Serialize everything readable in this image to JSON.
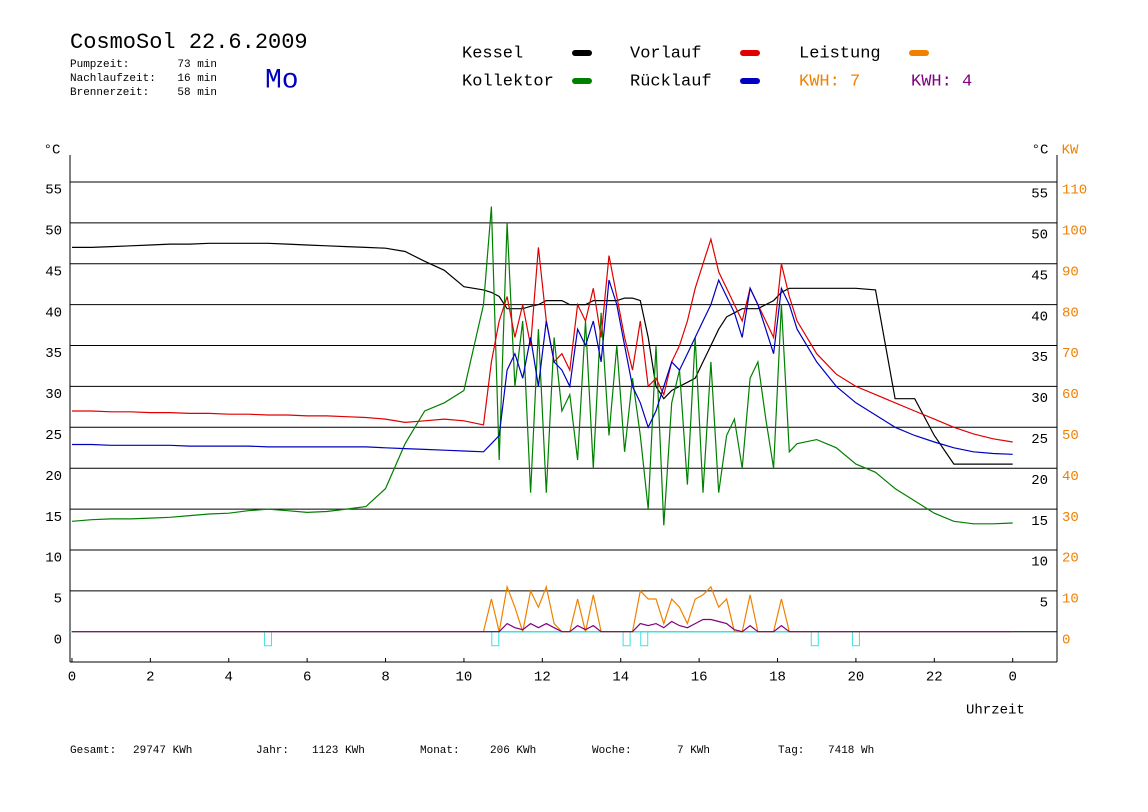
{
  "header": {
    "title": "CosmoSol 22.6.2009",
    "day": "Mo",
    "stats": [
      {
        "label": "Pumpzeit:",
        "value": "73 min"
      },
      {
        "label": "Nachlaufzeit:",
        "value": "16 min"
      },
      {
        "label": "Brennerzeit:",
        "value": "58 min"
      }
    ]
  },
  "footer": [
    {
      "label": "Gesamt:",
      "value": "29747 KWh"
    },
    {
      "label": "Jahr:",
      "value": "1123 KWh"
    },
    {
      "label": "Monat:",
      "value": "206 KWh"
    },
    {
      "label": "Woche:",
      "value": "7 KWh"
    },
    {
      "label": "Tag:",
      "value": "7418 Wh"
    }
  ],
  "chart_data": {
    "type": "line",
    "y_label": "°C",
    "y_right_label": "°C",
    "y2_label": "KW",
    "x_label": "Uhrzeit",
    "annotations": [
      {
        "text": "KWH: 7",
        "color": "#f08000"
      },
      {
        "text": "KWH: 4",
        "color": "#800080"
      }
    ],
    "xlim": [
      -0.05,
      25.13
    ],
    "ylim": [
      -3.7,
      58.3
    ],
    "y2lim": [
      -7.4,
      116.6
    ],
    "xticks": [
      0,
      2,
      4,
      6,
      8,
      10,
      12,
      14,
      16,
      18,
      20,
      22,
      {
        "value": 24,
        "label": "0"
      }
    ],
    "yticks": [
      0,
      5,
      10,
      15,
      20,
      25,
      30,
      35,
      40,
      45,
      50,
      55
    ],
    "yticks_right": [
      5,
      10,
      15,
      20,
      25,
      30,
      35,
      40,
      45,
      50,
      55
    ],
    "y2ticks": [
      0,
      10,
      20,
      30,
      40,
      50,
      60,
      70,
      80,
      90,
      100,
      110
    ],
    "grid": true,
    "status_color": "#40e0e0",
    "status_markers": [
      5,
      10.8,
      14.15,
      14.6,
      18.95,
      20
    ],
    "x": [
      0,
      0.5,
      1,
      1.5,
      2,
      2.5,
      3,
      3.5,
      4,
      4.5,
      5,
      5.5,
      6,
      6.5,
      7,
      7.5,
      8,
      8.5,
      9,
      9.5,
      10,
      10.5,
      10.7,
      10.9,
      11.1,
      11.3,
      11.5,
      11.7,
      11.9,
      12.1,
      12.3,
      12.5,
      12.7,
      12.9,
      13.1,
      13.3,
      13.5,
      13.7,
      13.9,
      14.1,
      14.3,
      14.5,
      14.7,
      14.9,
      15.1,
      15.3,
      15.5,
      15.7,
      15.9,
      16.1,
      16.3,
      16.5,
      16.7,
      16.9,
      17.1,
      17.3,
      17.5,
      17.7,
      17.9,
      18.1,
      18.3,
      18.5,
      19,
      19.5,
      20,
      20.5,
      21,
      21.5,
      22,
      22.5,
      23,
      23.5,
      24
    ],
    "series": [
      {
        "name": "Kessel",
        "color": "#000000",
        "values": [
          47,
          47,
          47.1,
          47.2,
          47.3,
          47.4,
          47.4,
          47.5,
          47.5,
          47.5,
          47.5,
          47.4,
          47.3,
          47.2,
          47.1,
          47,
          46.9,
          46.5,
          45.3,
          44.2,
          42.2,
          41.8,
          41.5,
          41,
          39.5,
          39.5,
          39.5,
          39.8,
          40,
          40.5,
          40.5,
          40.5,
          40,
          40,
          40,
          40.5,
          40.5,
          40.5,
          40.5,
          40.8,
          40.8,
          40.5,
          36,
          30,
          28.5,
          29.5,
          30,
          30.5,
          31,
          33,
          35,
          37,
          38.5,
          39,
          39.5,
          39.5,
          39.5,
          40,
          40.5,
          41.5,
          42,
          42,
          42,
          42,
          42,
          41.8,
          28.5,
          28.5,
          24,
          20.5,
          20.5,
          20.5,
          20.5
        ]
      },
      {
        "name": "Kollektor",
        "color": "#008000",
        "values": [
          13.5,
          13.7,
          13.8,
          13.8,
          13.9,
          14,
          14.2,
          14.4,
          14.5,
          14.8,
          15,
          14.8,
          14.6,
          14.7,
          15,
          15.3,
          17.5,
          23,
          27,
          28,
          29.5,
          40,
          52,
          21,
          50,
          30,
          38,
          17,
          37,
          17,
          36,
          27,
          29,
          21,
          38,
          20,
          39,
          24,
          35,
          22,
          31,
          24,
          15,
          35,
          13,
          28,
          32,
          18,
          36,
          17,
          33,
          17,
          24,
          26,
          20,
          31,
          33,
          26,
          20,
          40,
          22,
          23,
          23.5,
          22.5,
          20.5,
          19.5,
          17.5,
          16,
          14.5,
          13.5,
          13.2,
          13.2,
          13.3
        ]
      },
      {
        "name": "Vorlauf",
        "color": "#e00000",
        "values": [
          27,
          27,
          26.9,
          26.9,
          26.8,
          26.8,
          26.7,
          26.7,
          26.6,
          26.6,
          26.5,
          26.5,
          26.4,
          26.4,
          26.3,
          26.2,
          26,
          25.6,
          25.8,
          26,
          25.8,
          25.3,
          33,
          38,
          41,
          36,
          40,
          35,
          47,
          38,
          33,
          34,
          32,
          40,
          38,
          42,
          36,
          46,
          41,
          36,
          32,
          38,
          30,
          31,
          29,
          33,
          35,
          38,
          42,
          45,
          48,
          44,
          42,
          40,
          38,
          42,
          40,
          38,
          36,
          45,
          41,
          38,
          34,
          31.5,
          30,
          29,
          28,
          27,
          26,
          25,
          24.2,
          23.6,
          23.2
        ]
      },
      {
        "name": "Rücklauf",
        "color": "#0000c0",
        "values": [
          22.9,
          22.9,
          22.8,
          22.8,
          22.8,
          22.8,
          22.7,
          22.7,
          22.7,
          22.7,
          22.6,
          22.6,
          22.6,
          22.6,
          22.6,
          22.6,
          22.5,
          22.4,
          22.3,
          22.2,
          22.1,
          22,
          23,
          24,
          32,
          34,
          31,
          36,
          30,
          38,
          33,
          32,
          30,
          37,
          35,
          38,
          33,
          43,
          40,
          35,
          30,
          28,
          25,
          27,
          30,
          33,
          32,
          34,
          36,
          38,
          40,
          43,
          41,
          39,
          36,
          42,
          40,
          37,
          34,
          42,
          40,
          37,
          33,
          30,
          28,
          26.5,
          25,
          24,
          23.2,
          22.5,
          22,
          21.8,
          21.7
        ]
      },
      {
        "name": "Leistung",
        "color": "#f08000",
        "axis": "y2",
        "values": [
          0,
          0,
          0,
          0,
          0,
          0,
          0,
          0,
          0,
          0,
          0,
          0,
          0,
          0,
          0,
          0,
          0,
          0,
          0,
          0,
          0,
          0,
          8,
          0,
          11,
          6,
          0,
          10,
          6,
          11,
          2,
          0,
          0,
          8,
          0,
          9,
          0,
          0,
          0,
          0,
          0,
          10,
          8,
          8,
          2,
          8,
          6,
          2,
          8,
          9,
          11,
          6,
          8,
          0,
          0,
          9,
          0,
          0,
          0,
          8,
          0,
          0,
          0,
          0,
          0,
          0,
          0,
          0,
          0,
          0,
          0,
          0,
          0
        ]
      },
      {
        "color": "#800080",
        "axis": "y2",
        "values": [
          0,
          0,
          0,
          0,
          0,
          0,
          0,
          0,
          0,
          0,
          0,
          0,
          0,
          0,
          0,
          0,
          0,
          0,
          0,
          0,
          0,
          0,
          0,
          0,
          2,
          1,
          0.5,
          2,
          1,
          2,
          1,
          0,
          0,
          1.5,
          0.5,
          1.5,
          0,
          0,
          0,
          0,
          0,
          2,
          1.5,
          2,
          1,
          2.5,
          1.5,
          1,
          2,
          3,
          3,
          2.5,
          2,
          0.5,
          0,
          1.5,
          0,
          0,
          0,
          1.5,
          0,
          0,
          0,
          0,
          0,
          0,
          0,
          0,
          0,
          0,
          0,
          0,
          0
        ]
      }
    ]
  }
}
